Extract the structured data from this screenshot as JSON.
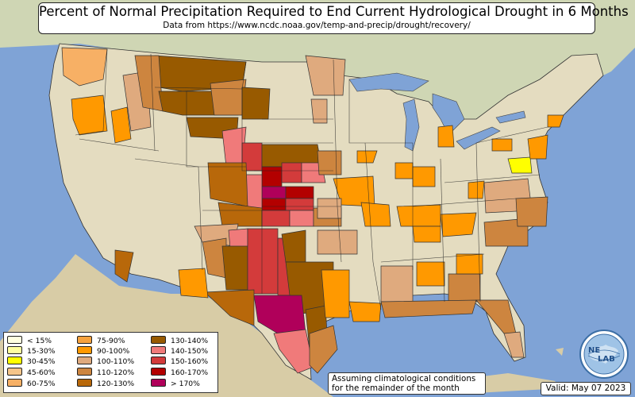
{
  "title": "Percent of Normal Precipitation Required to End Current Hydrological Drought in 6 Months",
  "subtitle": "Data from https://www.ncdc.noaa.gov/temp-and-precip/drought/recovery/",
  "legend": {
    "items": [
      {
        "label": "< 15%",
        "color": "#ffffe0"
      },
      {
        "label": "15-30%",
        "color": "#ffffa0"
      },
      {
        "label": "30-45%",
        "color": "#ffff00"
      },
      {
        "label": "45-60%",
        "color": "#f5c58a"
      },
      {
        "label": "60-75%",
        "color": "#f7b065"
      },
      {
        "label": "75-90%",
        "color": "#f6a23e"
      },
      {
        "label": "90-100%",
        "color": "#ff9900"
      },
      {
        "label": "100-110%",
        "color": "#dfaa7e"
      },
      {
        "label": "110-120%",
        "color": "#cd853f"
      },
      {
        "label": "120-130%",
        "color": "#b8680a"
      },
      {
        "label": "130-140%",
        "color": "#985a00"
      },
      {
        "label": "140-150%",
        "color": "#f07a7a"
      },
      {
        "label": "150-160%",
        "color": "#d33b3b"
      },
      {
        "label": "160-170%",
        "color": "#b30000"
      },
      {
        "label": "> 170%",
        "color": "#b0005a"
      }
    ]
  },
  "note": {
    "line1": "Assuming climatological conditions",
    "line2": "for the remainder of the month"
  },
  "valid": "Valid: May 07 2023",
  "logo": {
    "text": "NEXLAB",
    "part1": "NE",
    "part2": "LAB",
    "icon": "globe-icon"
  },
  "colors": {
    "ocean": "#7fa3d6",
    "land": "#e6dcc0",
    "lake": "#7fa3d6"
  }
}
